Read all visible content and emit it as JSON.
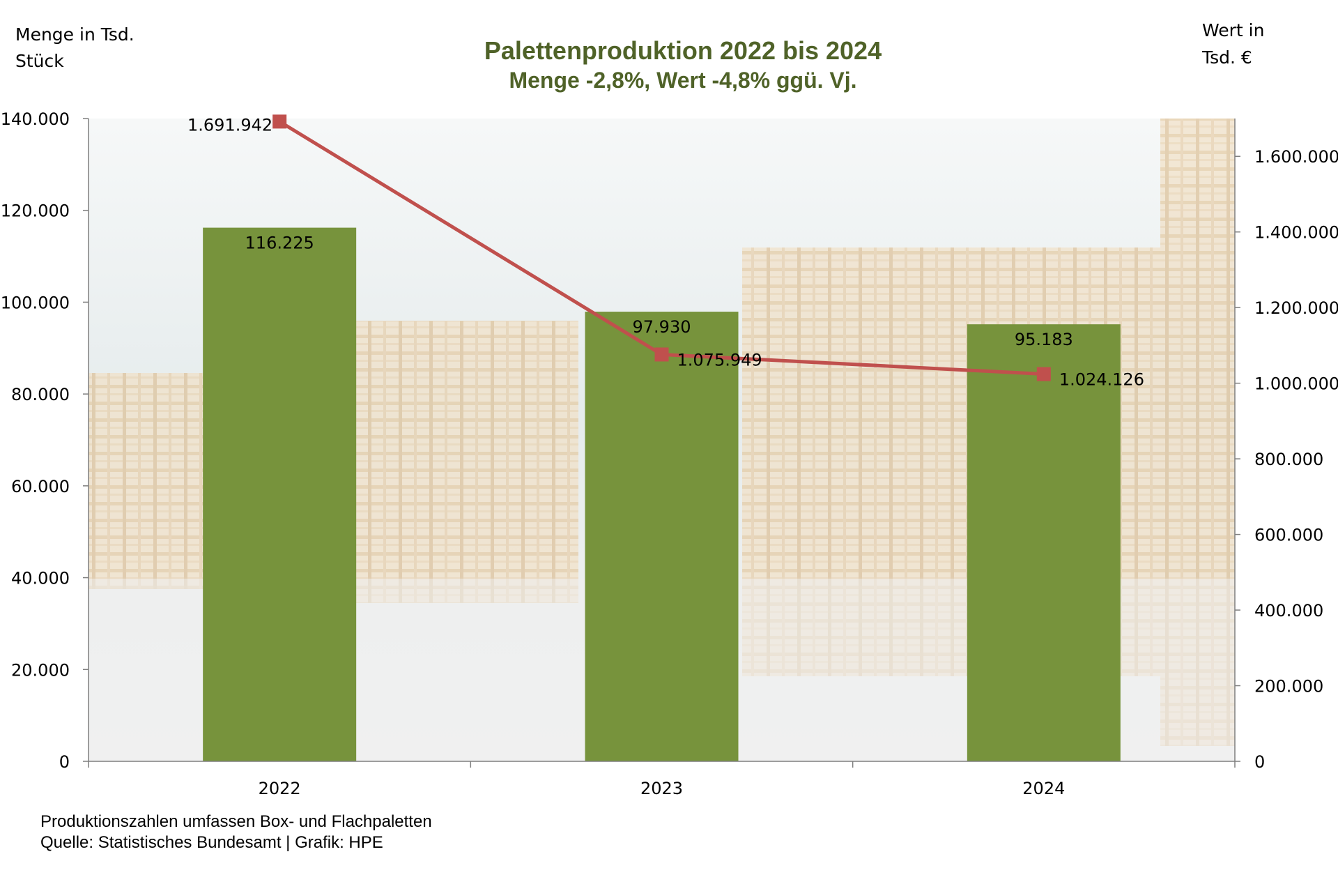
{
  "chart_data": {
    "type": "bar",
    "title": "Palettenproduktion 2022 bis 2024",
    "subtitle": "Menge -2,8%, Wert -4,8% ggü. Vj.",
    "y_left_label_lines": [
      "Menge in Tsd.",
      "Stück"
    ],
    "y_right_label_lines": [
      "Wert in",
      "Tsd. €"
    ],
    "categories": [
      "2022",
      "2023",
      "2024"
    ],
    "series": [
      {
        "type": "bar",
        "axis": "left",
        "values": [
          116225,
          97930,
          95183
        ],
        "labels": [
          "116.225",
          "97.930",
          "95.183"
        ],
        "color": "#77933c"
      },
      {
        "type": "line",
        "axis": "right",
        "values": [
          1691942,
          1075949,
          1024126
        ],
        "labels": [
          "1.691.942",
          "1.075.949",
          "1.024.126"
        ],
        "color": "#c0504d"
      }
    ],
    "y_left": {
      "min": 0,
      "max": 140000,
      "ticks": [
        0,
        20000,
        40000,
        60000,
        80000,
        100000,
        120000,
        140000
      ],
      "tick_labels": [
        "0",
        "20.000",
        "40.000",
        "60.000",
        "80.000",
        "100.000",
        "120.000",
        "140.000"
      ]
    },
    "y_right": {
      "min": 0,
      "max": 1700000,
      "ticks": [
        0,
        200000,
        400000,
        600000,
        800000,
        1000000,
        1200000,
        1400000,
        1600000
      ],
      "tick_labels": [
        "0",
        "200.000",
        "400.000",
        "600.000",
        "800.000",
        "1.000.000",
        "1.200.000",
        "1.400.000",
        "1.600.000"
      ]
    },
    "grid": false,
    "legend": "none",
    "background": "photo of stacked wooden pallets (faded)",
    "title_color": "#4f6228",
    "footnote_lines": [
      "Produktionszahlen umfassen Box- und Flachpaletten",
      "Quelle: Statistisches Bundesamt | Grafik: HPE"
    ]
  }
}
